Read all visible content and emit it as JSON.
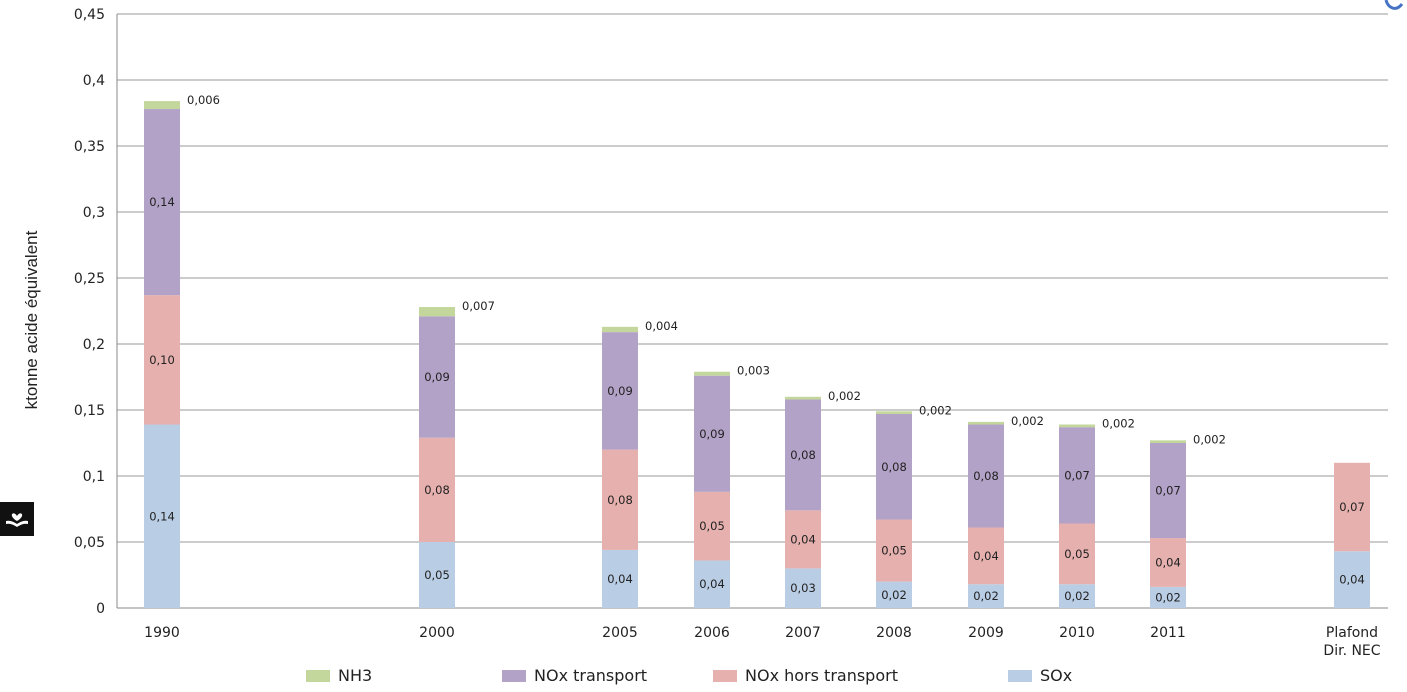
{
  "chart_data": {
    "type": "bar",
    "stacked": true,
    "categories": [
      "1990",
      "2000",
      "2005",
      "2006",
      "2007",
      "2008",
      "2009",
      "2010",
      "2011",
      "Plafond Dir. NEC"
    ],
    "category_lines": [
      [
        "1990"
      ],
      [
        "2000"
      ],
      [
        "2005"
      ],
      [
        "2006"
      ],
      [
        "2007"
      ],
      [
        "2008"
      ],
      [
        "2009"
      ],
      [
        "2010"
      ],
      [
        "2011"
      ],
      [
        "Plafond",
        "Dir. NEC"
      ]
    ],
    "series": [
      {
        "name": "SOx",
        "color": "#b9cde5",
        "values": [
          0.139,
          0.05,
          0.044,
          0.036,
          0.03,
          0.02,
          0.018,
          0.018,
          0.016,
          0.043
        ],
        "labels": [
          "0,14",
          "0,05",
          "0,04",
          "0,04",
          "0,03",
          "0,02",
          "0,02",
          "0,02",
          "0,02",
          "0,04"
        ]
      },
      {
        "name": "NOx hors transport",
        "color": "#e6b0ae",
        "values": [
          0.098,
          0.079,
          0.076,
          0.052,
          0.044,
          0.047,
          0.043,
          0.046,
          0.037,
          0.067
        ],
        "labels": [
          "0,10",
          "0,08",
          "0,08",
          "0,05",
          "0,04",
          "0,05",
          "0,04",
          "0,05",
          "0,04",
          "0,07"
        ]
      },
      {
        "name": "NOx transport",
        "color": "#b3a2c7",
        "values": [
          0.141,
          0.092,
          0.089,
          0.088,
          0.084,
          0.08,
          0.078,
          0.073,
          0.072,
          0
        ],
        "labels": [
          "0,14",
          "0,09",
          "0,09",
          "0,09",
          "0,08",
          "0,08",
          "0,08",
          "0,07",
          "0,07",
          ""
        ]
      },
      {
        "name": "NH3",
        "color": "#c3d69b",
        "values": [
          0.006,
          0.007,
          0.004,
          0.003,
          0.002,
          0.002,
          0.002,
          0.002,
          0.002,
          0
        ],
        "labels": [
          "0,006",
          "0,007",
          "0,004",
          "0,003",
          "0,002",
          "0,002",
          "0,002",
          "0,002",
          "0,002",
          ""
        ]
      }
    ],
    "legend_order": [
      "NH3",
      "NOx transport",
      "NOx hors transport",
      "SOx"
    ],
    "ylabel": "ktonne acide équivalent",
    "ylim": [
      0,
      0.45
    ],
    "yticks": [
      0,
      0.05,
      0.1,
      0.15,
      0.2,
      0.25,
      0.3,
      0.35,
      0.4,
      0.45
    ],
    "ytick_labels": [
      "0",
      "0,05",
      "0,1",
      "0,15",
      "0,2",
      "0,25",
      "0,3",
      "0,35",
      "0,4",
      "0,45"
    ],
    "grid": true,
    "legend_position": "bottom"
  },
  "legend": {
    "nh3": "NH3",
    "nox_transport": "NOx transport",
    "nox_hors_transport": "NOx hors transport",
    "sox": "SOx"
  },
  "colors": {
    "sox": "#b9cde5",
    "nox_hors_transport": "#e6b0ae",
    "nox_transport": "#b3a2c7",
    "nh3": "#c3d69b",
    "corner_mark": "#4472c4"
  },
  "icons": [
    "hands-heart-icon"
  ]
}
